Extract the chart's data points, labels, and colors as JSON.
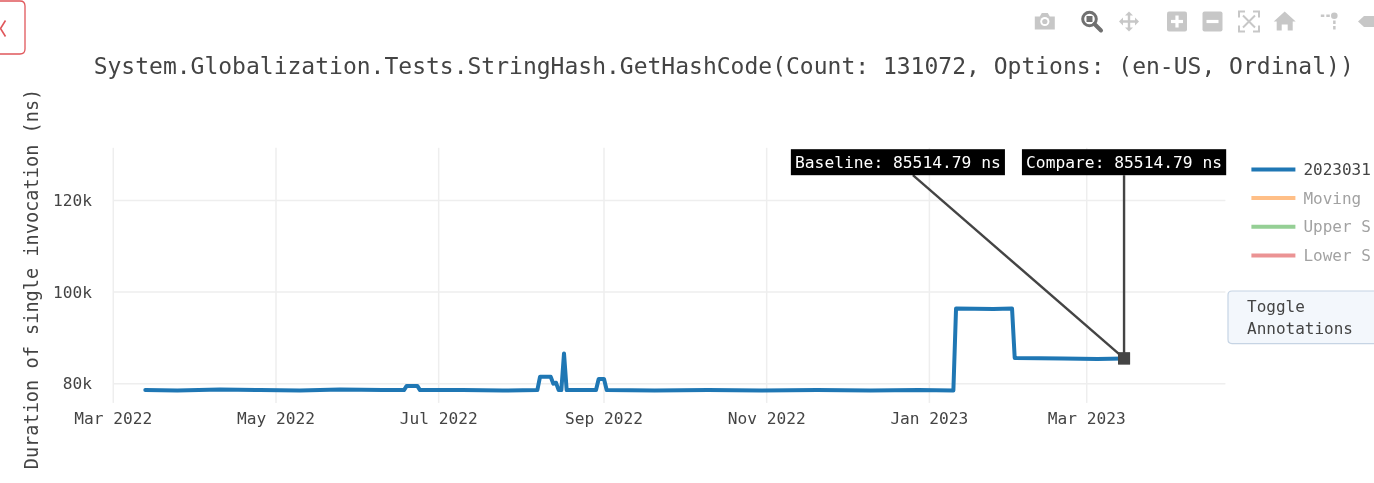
{
  "chart_data": {
    "type": "line",
    "title": "System.Globalization.Tests.StringHash.GetHashCode(Count: 131072, Options: (en-US, Ordinal))",
    "ylabel": "Duration of single invocation (ns)",
    "x": [
      "2022-03-13",
      "2022-03-25",
      "2022-04-10",
      "2022-04-25",
      "2022-05-10",
      "2022-05-25",
      "2022-06-10",
      "2022-06-18",
      "2022-06-19",
      "2022-06-23",
      "2022-06-24",
      "2022-07-10",
      "2022-07-25",
      "2022-08-07",
      "2022-08-08",
      "2022-08-12",
      "2022-08-13",
      "2022-08-14",
      "2022-08-15",
      "2022-08-16",
      "2022-08-17",
      "2022-08-18",
      "2022-08-29",
      "2022-08-30",
      "2022-09-01",
      "2022-09-02",
      "2022-09-20",
      "2022-10-10",
      "2022-10-30",
      "2022-11-20",
      "2022-12-10",
      "2022-12-28",
      "2023-01-10",
      "2023-01-11",
      "2023-01-25",
      "2023-02-01",
      "2023-02-02",
      "2023-02-20",
      "2023-03-05",
      "2023-03-15"
    ],
    "series": [
      {
        "name": "2023031",
        "color": "#1f77b4",
        "values": [
          78600,
          78500,
          78700,
          78600,
          78500,
          78700,
          78600,
          78600,
          79500,
          79500,
          78600,
          78600,
          78500,
          78600,
          81500,
          81500,
          80000,
          80200,
          78600,
          78600,
          86600,
          78600,
          78600,
          81000,
          81000,
          78600,
          78500,
          78600,
          78500,
          78600,
          78500,
          78600,
          78500,
          96400,
          96300,
          96400,
          85600,
          85500,
          85400,
          85514.79
        ]
      },
      {
        "name": "Moving",
        "color": "#ffbf87",
        "values": [
          null,
          null,
          null,
          null,
          null,
          null,
          null,
          null,
          null,
          null,
          null,
          null,
          null,
          null,
          null,
          null,
          null,
          null,
          null,
          null,
          null,
          null,
          null,
          null,
          null,
          null,
          null,
          null,
          null,
          null,
          null,
          null,
          null,
          null,
          null,
          null,
          null,
          null,
          null,
          null
        ]
      },
      {
        "name": "Upper S",
        "color": "#95cf95",
        "values": [
          null,
          null,
          null,
          null,
          null,
          null,
          null,
          null,
          null,
          null,
          null,
          null,
          null,
          null,
          null,
          null,
          null,
          null,
          null,
          null,
          null,
          null,
          null,
          null,
          null,
          null,
          null,
          null,
          null,
          null,
          null,
          null,
          null,
          null,
          null,
          null,
          null,
          null,
          null,
          null
        ]
      },
      {
        "name": "Lower S",
        "color": "#eb9394",
        "values": [
          null,
          null,
          null,
          null,
          null,
          null,
          null,
          null,
          null,
          null,
          null,
          null,
          null,
          null,
          null,
          null,
          null,
          null,
          null,
          null,
          null,
          null,
          null,
          null,
          null,
          null,
          null,
          null,
          null,
          null,
          null,
          null,
          null,
          null,
          null,
          null,
          null,
          null,
          null,
          null
        ]
      }
    ],
    "xlim": [
      "2022-03-01",
      "2023-04-22"
    ],
    "xticks": [
      {
        "value": "2022-03-01",
        "label": "Mar 2022"
      },
      {
        "value": "2022-05-01",
        "label": "May 2022"
      },
      {
        "value": "2022-07-01",
        "label": "Jul 2022"
      },
      {
        "value": "2022-09-01",
        "label": "Sep 2022"
      },
      {
        "value": "2022-11-01",
        "label": "Nov 2022"
      },
      {
        "value": "2023-01-01",
        "label": "Jan 2023"
      },
      {
        "value": "2023-03-01",
        "label": "Mar 2023"
      }
    ],
    "ylim": [
      75800,
      131500
    ],
    "yticks": [
      {
        "value": 80000,
        "label": "80k"
      },
      {
        "value": 100000,
        "label": "100k"
      },
      {
        "value": 120000,
        "label": "120k"
      }
    ],
    "grid": true,
    "legend": "right",
    "annotations": [
      {
        "text": "Baseline: 85514.79 ns",
        "x": "2023-03-15",
        "y": 85514.79
      },
      {
        "text": "Compare: 85514.79 ns",
        "x": "2023-03-15",
        "y": 85514.79
      },
      "Toggle Annotations"
    ]
  }
}
